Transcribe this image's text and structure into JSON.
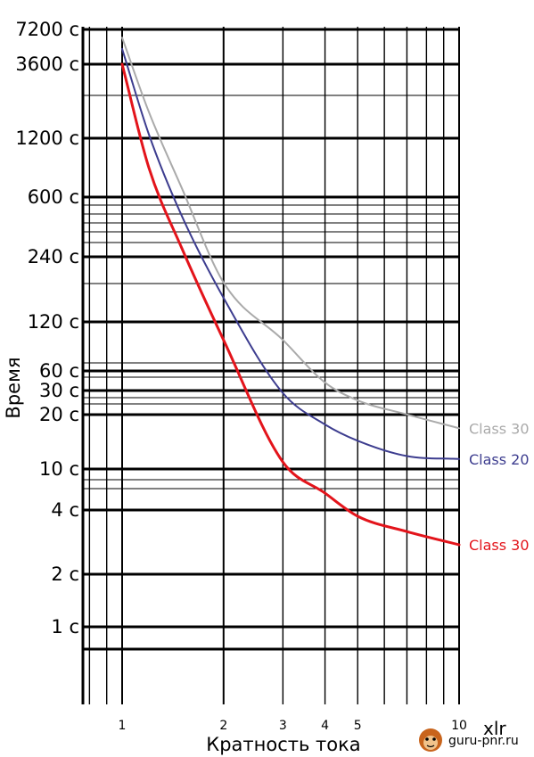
{
  "chart_data": {
    "type": "line",
    "title": "",
    "xlabel": "Кратность тока",
    "ylabel": "Время",
    "x_unit": "xlr",
    "x_scale": "log",
    "y_scale": "log",
    "xlim": [
      0.75,
      10
    ],
    "grid": true,
    "x_ticks": [
      {
        "value": 1,
        "label": "1"
      },
      {
        "value": 2,
        "label": "2"
      },
      {
        "value": 3,
        "label": "3"
      },
      {
        "value": 4,
        "label": "4"
      },
      {
        "value": 5,
        "label": "5"
      },
      {
        "value": 10,
        "label": "10"
      }
    ],
    "y_ticks": [
      {
        "value": 7200,
        "label": "7200 с"
      },
      {
        "value": 3600,
        "label": "3600 с"
      },
      {
        "value": 1200,
        "label": "1200 с"
      },
      {
        "value": 600,
        "label": "600 с"
      },
      {
        "value": 240,
        "label": "240 с"
      },
      {
        "value": 120,
        "label": "120 с"
      },
      {
        "value": 60,
        "label": "60 с"
      },
      {
        "value": 30,
        "label": "30 с"
      },
      {
        "value": 20,
        "label": "20 с"
      },
      {
        "value": 10,
        "label": "10 с"
      },
      {
        "value": 4,
        "label": "4 с"
      },
      {
        "value": 2,
        "label": "2 с"
      },
      {
        "value": 1,
        "label": "1 с"
      }
    ],
    "series": [
      {
        "name": "Class 30",
        "color": "#aaaaaa",
        "x": [
          1,
          1.2,
          1.5,
          2,
          3,
          4,
          5,
          7,
          10
        ],
        "y": [
          5300,
          1800,
          600,
          150,
          65,
          35,
          27,
          22,
          18
        ]
      },
      {
        "name": "Class 20",
        "color": "#3d3d8f",
        "x": [
          1,
          1.2,
          1.5,
          2,
          3,
          4,
          5,
          7,
          10
        ],
        "y": [
          4500,
          1300,
          400,
          120,
          30,
          19,
          15,
          12,
          11.5
        ]
      },
      {
        "name": "Class 30",
        "color": "#e3141b",
        "x": [
          1,
          1.2,
          1.5,
          2,
          3,
          4,
          5,
          7,
          10
        ],
        "y": [
          3600,
          800,
          250,
          65,
          11,
          7,
          5,
          4,
          3.3
        ]
      }
    ]
  },
  "watermark": {
    "text": "guru-pnr.ru"
  }
}
